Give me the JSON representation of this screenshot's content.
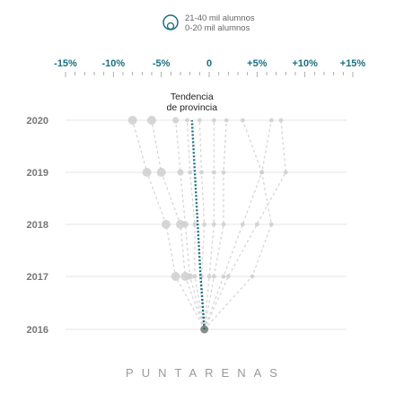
{
  "chart_data": {
    "type": "scatter",
    "title": "",
    "region": "PUNTARENAS",
    "legend": {
      "position": "top",
      "entries": [
        "21-40 mil alumnos",
        "0-20 mil alumnos"
      ]
    },
    "x_axis": {
      "range": [
        -15,
        15
      ],
      "unit": "%",
      "tick_labels": [
        "-15%",
        "-10%",
        "-5%",
        "0",
        "+5%",
        "+10%",
        "+15%"
      ],
      "tick_values": [
        -15,
        -10,
        -5,
        0,
        5,
        10,
        15
      ],
      "position": "top"
    },
    "y_categories": [
      "2020",
      "2019",
      "2018",
      "2017",
      "2016"
    ],
    "trend": {
      "label_line1": "Tendencia",
      "label_line2": "de provincia",
      "color": "#1a6f80",
      "points": [
        {
          "year": "2016",
          "value": -0.5
        },
        {
          "year": "2017",
          "value": -0.9
        },
        {
          "year": "2018",
          "value": -1.2
        },
        {
          "year": "2019",
          "value": -1.5
        },
        {
          "year": "2020",
          "value": -1.8
        }
      ]
    },
    "series": [
      {
        "size": "large",
        "values": {
          "2016": -0.5,
          "2017": -3.5,
          "2018": -4.5,
          "2019": -6.5,
          "2020": -8.0
        }
      },
      {
        "size": "large",
        "values": {
          "2016": -0.5,
          "2017": -2.5,
          "2018": -3.0,
          "2019": -5.0,
          "2020": -6.0
        }
      },
      {
        "size": "medium",
        "values": {
          "2016": -0.5,
          "2017": -2.0,
          "2018": -2.5,
          "2019": -3.0,
          "2020": -3.5
        }
      },
      {
        "size": "small",
        "values": {
          "2016": -0.5,
          "2017": -1.5,
          "2018": -1.5,
          "2019": -2.0,
          "2020": -2.3
        }
      },
      {
        "size": "small",
        "values": {
          "2016": -0.5,
          "2017": -0.8,
          "2018": -0.5,
          "2019": -0.8,
          "2020": -1.0
        }
      },
      {
        "size": "small",
        "values": {
          "2016": -0.5,
          "2017": 0.0,
          "2018": 0.5,
          "2019": 0.5,
          "2020": 0.5
        }
      },
      {
        "size": "small",
        "values": {
          "2016": -0.5,
          "2017": 0.5,
          "2018": 1.5,
          "2019": 1.5,
          "2020": 1.8
        }
      },
      {
        "size": "small",
        "values": {
          "2016": -0.5,
          "2017": 1.5,
          "2018": 3.5,
          "2019": 5.5,
          "2020": 3.5
        }
      },
      {
        "size": "small",
        "values": {
          "2016": -0.5,
          "2017": 2.0,
          "2018": 5.0,
          "2019": 8.0,
          "2020": 7.5
        }
      },
      {
        "size": "small",
        "values": {
          "2016": -0.5,
          "2017": 4.5,
          "2018": 6.5,
          "2019": 5.5,
          "2020": 6.5
        }
      }
    ]
  }
}
